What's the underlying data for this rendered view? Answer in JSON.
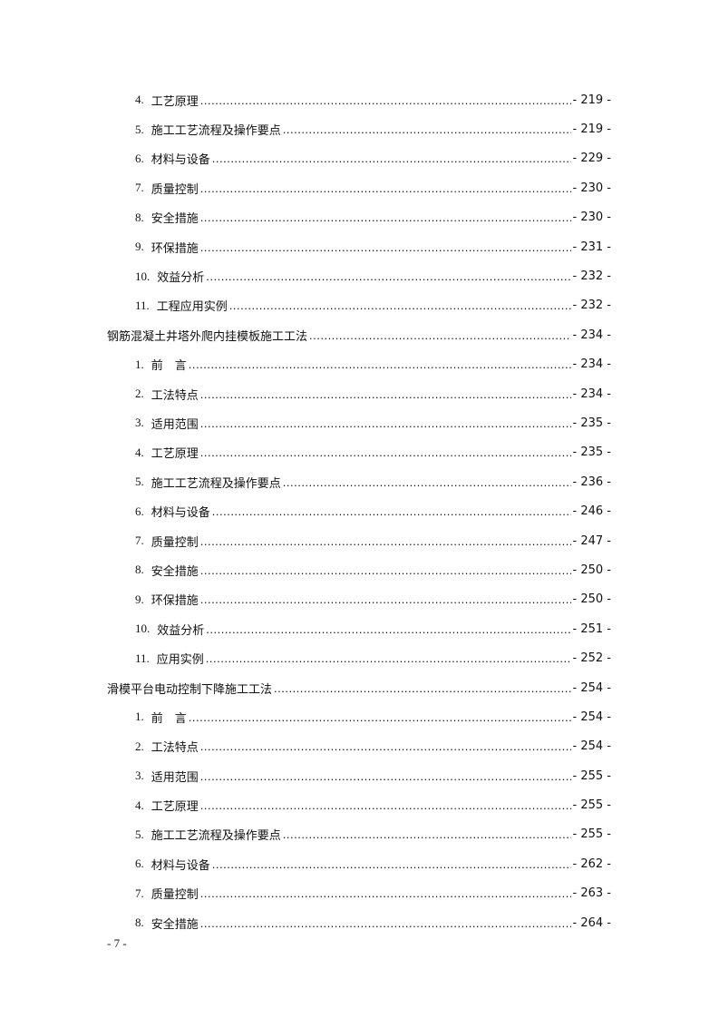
{
  "toc": [
    {
      "num": "4.",
      "title": "工艺原理",
      "page": "- 219 -",
      "level": 2
    },
    {
      "num": "5.",
      "title": "施工工艺流程及操作要点",
      "page": "- 219 -",
      "level": 2
    },
    {
      "num": "6.",
      "title": "材料与设备",
      "page": "- 229 -",
      "level": 2
    },
    {
      "num": "7.",
      "title": "质量控制",
      "page": "- 230 -",
      "level": 2
    },
    {
      "num": "8.",
      "title": "安全措施",
      "page": "- 230 -",
      "level": 2
    },
    {
      "num": "9.",
      "title": "环保措施",
      "page": "- 231 -",
      "level": 2
    },
    {
      "num": "10.",
      "title": "效益分析",
      "page": "- 232 -",
      "level": 2
    },
    {
      "num": "11.",
      "title": "工程应用实例",
      "page": "- 232 -",
      "level": 2
    },
    {
      "num": "",
      "title": "钢筋混凝土井塔外爬内挂模板施工工法",
      "page": "- 234 -",
      "level": 1
    },
    {
      "num": "1.",
      "title": "前　言",
      "page": "- 234 -",
      "level": 2
    },
    {
      "num": "2.",
      "title": "工法特点",
      "page": "- 234 -",
      "level": 2
    },
    {
      "num": "3.",
      "title": "适用范围",
      "page": "- 235 -",
      "level": 2
    },
    {
      "num": "4.",
      "title": "工艺原理",
      "page": "- 235 -",
      "level": 2
    },
    {
      "num": "5.",
      "title": "施工工艺流程及操作要点",
      "page": "- 236 -",
      "level": 2
    },
    {
      "num": "6.",
      "title": "材料与设备",
      "page": "- 246 -",
      "level": 2
    },
    {
      "num": "7.",
      "title": "质量控制",
      "page": "- 247 -",
      "level": 2
    },
    {
      "num": "8.",
      "title": "安全措施",
      "page": "- 250 -",
      "level": 2
    },
    {
      "num": "9.",
      "title": "环保措施",
      "page": "- 250 -",
      "level": 2
    },
    {
      "num": "10.",
      "title": "效益分析",
      "page": "- 251 -",
      "level": 2
    },
    {
      "num": "11.",
      "title": "应用实例",
      "page": "- 252 -",
      "level": 2
    },
    {
      "num": "",
      "title": "滑模平台电动控制下降施工工法",
      "page": "- 254 -",
      "level": 1
    },
    {
      "num": "1.",
      "title": "前　言",
      "page": "- 254 -",
      "level": 2
    },
    {
      "num": "2.",
      "title": "工法特点",
      "page": "- 254 -",
      "level": 2
    },
    {
      "num": "3.",
      "title": "适用范围",
      "page": "- 255 -",
      "level": 2
    },
    {
      "num": "4.",
      "title": "工艺原理",
      "page": "- 255 -",
      "level": 2
    },
    {
      "num": "5.",
      "title": "施工工艺流程及操作要点",
      "page": "- 255 -",
      "level": 2
    },
    {
      "num": "6.",
      "title": "材料与设备",
      "page": "- 262 -",
      "level": 2
    },
    {
      "num": "7.",
      "title": "质量控制",
      "page": "- 263 -",
      "level": 2
    },
    {
      "num": "8.",
      "title": "安全措施",
      "page": "- 264 -",
      "level": 2
    }
  ],
  "footer": {
    "page_number": "- 7 -"
  }
}
